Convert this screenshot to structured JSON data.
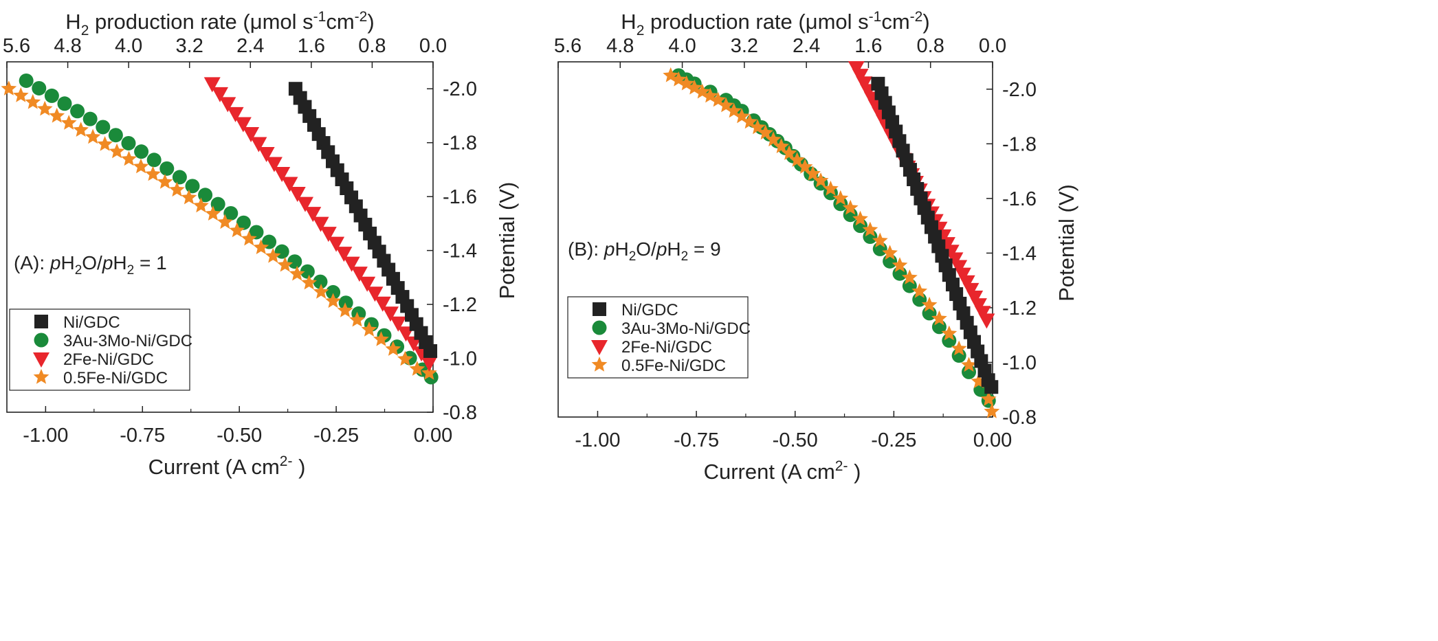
{
  "chart_data": [
    {
      "type": "scatter",
      "panel_label": "(A):",
      "condition": {
        "prefix": "p",
        "h2o": "H",
        "h2o_sub": "2",
        "o": "O/",
        "p2": "p",
        "h2": "H",
        "h2_sub": "2",
        "rest": " = 1"
      },
      "xlabel": "Current (A cm",
      "xlabel_sup": "2-",
      "xlabel_end": ")",
      "ylabel": "Potential (V)",
      "top_label_main": "H",
      "top_label_sub": "2",
      "top_label_text": " production rate (μmol s",
      "top_label_sup1": "-1",
      "top_label_mid": "cm",
      "top_label_sup2": "-2",
      "top_label_end": ")",
      "xlim": [
        -1.1,
        0.0
      ],
      "ylim": [
        -0.8,
        -2.1
      ],
      "x_ticks": [
        "-1.00",
        "-0.75",
        "-0.50",
        "-0.25",
        "0.00"
      ],
      "y_ticks": [
        "-0.8",
        "-1.0",
        "-1.2",
        "-1.4",
        "-1.6",
        "-1.8",
        "-2.0"
      ],
      "top_ticks": [
        "5.6",
        "4.8",
        "4.0",
        "3.2",
        "2.4",
        "1.6",
        "0.8",
        "0.0"
      ],
      "legend_position": "bottom-left",
      "series": [
        {
          "name": "Ni/GDC",
          "marker": "square",
          "color": "#222222",
          "x": [
            -0.355,
            -0.343,
            -0.331,
            -0.319,
            -0.307,
            -0.295,
            -0.283,
            -0.271,
            -0.259,
            -0.247,
            -0.235,
            -0.223,
            -0.211,
            -0.199,
            -0.187,
            -0.175,
            -0.163,
            -0.151,
            -0.139,
            -0.127,
            -0.115,
            -0.103,
            -0.091,
            -0.079,
            -0.067,
            -0.055,
            -0.043,
            -0.031,
            -0.019,
            -0.007
          ],
          "y": [
            -2.0,
            -1.966,
            -1.933,
            -1.899,
            -1.866,
            -1.832,
            -1.799,
            -1.765,
            -1.731,
            -1.698,
            -1.664,
            -1.631,
            -1.597,
            -1.564,
            -1.53,
            -1.496,
            -1.463,
            -1.429,
            -1.396,
            -1.362,
            -1.329,
            -1.295,
            -1.261,
            -1.228,
            -1.194,
            -1.161,
            -1.127,
            -1.094,
            -1.06,
            -1.027
          ]
        },
        {
          "name": "3Au-3Mo-Ni/GDC",
          "marker": "circle",
          "color": "#1a8a3a",
          "x": [
            -1.05,
            -1.017,
            -0.984,
            -0.951,
            -0.918,
            -0.885,
            -0.852,
            -0.819,
            -0.786,
            -0.753,
            -0.72,
            -0.687,
            -0.654,
            -0.621,
            -0.588,
            -0.555,
            -0.522,
            -0.489,
            -0.456,
            -0.423,
            -0.39,
            -0.357,
            -0.324,
            -0.291,
            -0.258,
            -0.225,
            -0.192,
            -0.159,
            -0.126,
            -0.093,
            -0.06,
            -0.027,
            -0.005
          ],
          "y": [
            -2.03,
            -2.002,
            -1.974,
            -1.945,
            -1.917,
            -1.888,
            -1.858,
            -1.828,
            -1.798,
            -1.767,
            -1.736,
            -1.704,
            -1.672,
            -1.639,
            -1.606,
            -1.572,
            -1.538,
            -1.503,
            -1.468,
            -1.432,
            -1.396,
            -1.359,
            -1.322,
            -1.284,
            -1.245,
            -1.206,
            -1.166,
            -1.126,
            -1.085,
            -1.043,
            -1.001,
            -0.958,
            -0.93
          ]
        },
        {
          "name": "2Fe-Ni/GDC",
          "marker": "triangle-down",
          "color": "#e8262c",
          "x": [
            -0.57,
            -0.55,
            -0.53,
            -0.51,
            -0.49,
            -0.47,
            -0.45,
            -0.43,
            -0.41,
            -0.39,
            -0.37,
            -0.35,
            -0.33,
            -0.31,
            -0.29,
            -0.27,
            -0.25,
            -0.23,
            -0.21,
            -0.19,
            -0.17,
            -0.15,
            -0.13,
            -0.11,
            -0.09,
            -0.07,
            -0.05,
            -0.03,
            -0.01
          ],
          "y": [
            -2.02,
            -1.983,
            -1.946,
            -1.909,
            -1.872,
            -1.835,
            -1.798,
            -1.761,
            -1.724,
            -1.687,
            -1.65,
            -1.613,
            -1.576,
            -1.539,
            -1.502,
            -1.465,
            -1.428,
            -1.391,
            -1.354,
            -1.317,
            -1.28,
            -1.243,
            -1.206,
            -1.169,
            -1.132,
            -1.095,
            -1.058,
            -1.021,
            -0.984
          ]
        },
        {
          "name": "0.5Fe-Ni/GDC",
          "marker": "star",
          "color": "#f08a24",
          "x": [
            -1.095,
            -1.064,
            -1.033,
            -1.002,
            -0.971,
            -0.94,
            -0.909,
            -0.878,
            -0.847,
            -0.816,
            -0.785,
            -0.754,
            -0.723,
            -0.692,
            -0.661,
            -0.63,
            -0.599,
            -0.568,
            -0.537,
            -0.506,
            -0.475,
            -0.444,
            -0.413,
            -0.382,
            -0.351,
            -0.32,
            -0.289,
            -0.258,
            -0.227,
            -0.196,
            -0.165,
            -0.134,
            -0.103,
            -0.072,
            -0.041,
            -0.01
          ],
          "y": [
            -2.0,
            -1.975,
            -1.95,
            -1.925,
            -1.899,
            -1.873,
            -1.847,
            -1.821,
            -1.794,
            -1.767,
            -1.739,
            -1.711,
            -1.683,
            -1.654,
            -1.625,
            -1.596,
            -1.566,
            -1.536,
            -1.505,
            -1.474,
            -1.443,
            -1.411,
            -1.379,
            -1.346,
            -1.313,
            -1.28,
            -1.246,
            -1.212,
            -1.177,
            -1.142,
            -1.106,
            -1.07,
            -1.034,
            -0.997,
            -0.96,
            -0.945
          ]
        }
      ]
    },
    {
      "type": "scatter",
      "panel_label": "(B):",
      "condition": {
        "prefix": "p",
        "h2o": "H",
        "h2o_sub": "2",
        "o": "O/",
        "p2": "p",
        "h2": "H",
        "h2_sub": "2",
        "rest": " = 9"
      },
      "xlabel": "Current (A cm",
      "xlabel_sup": "2-",
      "xlabel_end": ")",
      "ylabel": "Potential (V)",
      "top_label_main": "H",
      "top_label_sub": "2",
      "top_label_text": " production rate (μmol s",
      "top_label_sup1": "-1",
      "top_label_mid": "cm",
      "top_label_sup2": "-2",
      "top_label_end": ")",
      "xlim": [
        -1.1,
        0.0
      ],
      "ylim": [
        -0.8,
        -2.1
      ],
      "x_ticks": [
        "-1.00",
        "-0.75",
        "-0.50",
        "-0.25",
        "0.00"
      ],
      "y_ticks": [
        "-0.8",
        "-1.0",
        "-1.2",
        "-1.4",
        "-1.6",
        "-1.8",
        "-2.0"
      ],
      "top_ticks": [
        "5.6",
        "4.8",
        "4.0",
        "3.2",
        "2.4",
        "1.6",
        "0.8",
        "0.0"
      ],
      "legend_position": "bottom-left",
      "series": [
        {
          "name": "Ni/GDC",
          "marker": "square",
          "color": "#222222",
          "x": [
            -0.29,
            -0.281,
            -0.272,
            -0.263,
            -0.254,
            -0.245,
            -0.236,
            -0.227,
            -0.218,
            -0.209,
            -0.2,
            -0.191,
            -0.182,
            -0.173,
            -0.164,
            -0.155,
            -0.146,
            -0.137,
            -0.128,
            -0.119,
            -0.11,
            -0.101,
            -0.092,
            -0.083,
            -0.074,
            -0.065,
            -0.056,
            -0.047,
            -0.038,
            -0.029,
            -0.02,
            -0.011,
            -0.003
          ],
          "y": [
            -2.02,
            -1.985,
            -1.95,
            -1.915,
            -1.88,
            -1.845,
            -1.81,
            -1.775,
            -1.74,
            -1.705,
            -1.67,
            -1.635,
            -1.6,
            -1.565,
            -1.53,
            -1.495,
            -1.46,
            -1.425,
            -1.39,
            -1.355,
            -1.32,
            -1.285,
            -1.25,
            -1.215,
            -1.18,
            -1.145,
            -1.11,
            -1.075,
            -1.04,
            -1.005,
            -0.97,
            -0.935,
            -0.91
          ]
        },
        {
          "name": "3Au-3Mo-Ni/GDC",
          "marker": "circle",
          "color": "#1a8a3a",
          "x": [
            -0.795,
            -0.775,
            -0.755,
            -0.715,
            -0.675,
            -0.655,
            -0.635,
            -0.605,
            -0.585,
            -0.565,
            -0.545,
            -0.525,
            -0.505,
            -0.485,
            -0.46,
            -0.435,
            -0.41,
            -0.385,
            -0.36,
            -0.335,
            -0.31,
            -0.285,
            -0.26,
            -0.235,
            -0.21,
            -0.185,
            -0.16,
            -0.135,
            -0.11,
            -0.085,
            -0.06,
            -0.03,
            -0.01
          ],
          "y": [
            -2.05,
            -2.035,
            -2.02,
            -1.99,
            -1.96,
            -1.94,
            -1.92,
            -1.885,
            -1.86,
            -1.835,
            -1.81,
            -1.785,
            -1.755,
            -1.725,
            -1.69,
            -1.655,
            -1.62,
            -1.58,
            -1.54,
            -1.5,
            -1.46,
            -1.415,
            -1.37,
            -1.325,
            -1.28,
            -1.23,
            -1.18,
            -1.13,
            -1.08,
            -1.025,
            -0.965,
            -0.9,
            -0.86
          ]
        },
        {
          "name": "2Fe-Ni/GDC",
          "marker": "triangle-down",
          "color": "#e8262c",
          "x": [
            -0.345,
            -0.335,
            -0.325,
            -0.315,
            -0.305,
            -0.295,
            -0.285,
            -0.275,
            -0.265,
            -0.255,
            -0.245,
            -0.235,
            -0.225,
            -0.215,
            -0.205,
            -0.195,
            -0.185,
            -0.175,
            -0.165,
            -0.155,
            -0.145,
            -0.135,
            -0.125,
            -0.115,
            -0.105,
            -0.095,
            -0.085,
            -0.075,
            -0.065,
            -0.055,
            -0.045,
            -0.035,
            -0.025,
            -0.015
          ],
          "y": [
            -2.08,
            -2.052,
            -2.024,
            -1.996,
            -1.968,
            -1.94,
            -1.912,
            -1.884,
            -1.856,
            -1.828,
            -1.8,
            -1.772,
            -1.744,
            -1.716,
            -1.688,
            -1.66,
            -1.632,
            -1.604,
            -1.576,
            -1.548,
            -1.52,
            -1.492,
            -1.464,
            -1.436,
            -1.408,
            -1.38,
            -1.352,
            -1.324,
            -1.296,
            -1.268,
            -1.24,
            -1.212,
            -1.184,
            -1.156
          ]
        },
        {
          "name": "0.5Fe-Ni/GDC",
          "marker": "star",
          "color": "#f08a24",
          "x": [
            -0.815,
            -0.795,
            -0.775,
            -0.755,
            -0.735,
            -0.715,
            -0.695,
            -0.675,
            -0.655,
            -0.635,
            -0.615,
            -0.595,
            -0.575,
            -0.555,
            -0.535,
            -0.515,
            -0.495,
            -0.475,
            -0.455,
            -0.435,
            -0.41,
            -0.385,
            -0.36,
            -0.335,
            -0.31,
            -0.285,
            -0.26,
            -0.235,
            -0.21,
            -0.185,
            -0.16,
            -0.135,
            -0.11,
            -0.085,
            -0.06,
            -0.035,
            -0.01,
            -0.002
          ],
          "y": [
            -2.05,
            -2.035,
            -2.02,
            -2.005,
            -1.99,
            -1.975,
            -1.96,
            -1.94,
            -1.92,
            -1.9,
            -1.88,
            -1.86,
            -1.84,
            -1.815,
            -1.79,
            -1.765,
            -1.74,
            -1.715,
            -1.69,
            -1.665,
            -1.635,
            -1.6,
            -1.565,
            -1.525,
            -1.485,
            -1.445,
            -1.4,
            -1.355,
            -1.31,
            -1.26,
            -1.21,
            -1.16,
            -1.105,
            -1.05,
            -0.99,
            -0.93,
            -0.865,
            -0.82
          ]
        }
      ]
    }
  ]
}
